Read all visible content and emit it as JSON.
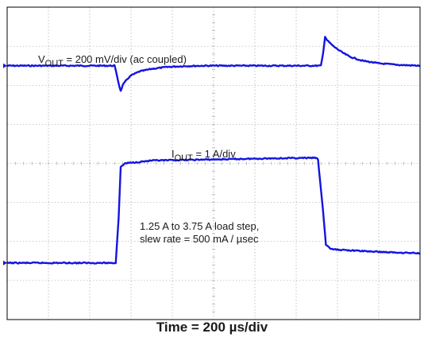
{
  "chart_data": {
    "type": "line",
    "xlabel": "Time = 200 µs/div",
    "divisions": {
      "x": 10,
      "y": 8
    },
    "x_unit": "div",
    "y_unit": "div",
    "series": [
      {
        "label_prefix": "V",
        "label_sub": "OUT",
        "label_suffix": " = 200 mV/div (ac coupled)",
        "color": "#1414e0",
        "baseline_div": 1.5,
        "points": [
          [
            0,
            1.5
          ],
          [
            2.6,
            1.5
          ],
          [
            2.65,
            1.7
          ],
          [
            2.7,
            1.95
          ],
          [
            2.75,
            2.15
          ],
          [
            2.8,
            2.0
          ],
          [
            2.9,
            1.85
          ],
          [
            3.0,
            1.75
          ],
          [
            3.2,
            1.65
          ],
          [
            3.5,
            1.58
          ],
          [
            3.9,
            1.53
          ],
          [
            4.3,
            1.51
          ],
          [
            4.8,
            1.5
          ],
          [
            7.6,
            1.5
          ],
          [
            7.65,
            1.2
          ],
          [
            7.7,
            0.75
          ],
          [
            7.75,
            0.85
          ],
          [
            7.9,
            1.0
          ],
          [
            8.1,
            1.15
          ],
          [
            8.3,
            1.27
          ],
          [
            8.6,
            1.37
          ],
          [
            9.0,
            1.44
          ],
          [
            9.5,
            1.48
          ],
          [
            10,
            1.5
          ]
        ]
      },
      {
        "label_prefix": "I",
        "label_sub": "OUT",
        "label_suffix": " = 1 A/div",
        "color": "#1414e0",
        "points": [
          [
            0,
            6.55
          ],
          [
            2.63,
            6.55
          ],
          [
            2.7,
            5.4
          ],
          [
            2.75,
            4.1
          ],
          [
            2.85,
            4.0
          ],
          [
            3.5,
            3.93
          ],
          [
            5.0,
            3.9
          ],
          [
            6.5,
            3.87
          ],
          [
            7.5,
            3.86
          ],
          [
            7.53,
            3.92
          ],
          [
            7.65,
            5.2
          ],
          [
            7.72,
            6.08
          ],
          [
            7.85,
            6.2
          ],
          [
            8.5,
            6.24
          ],
          [
            9.3,
            6.28
          ],
          [
            10,
            6.3
          ]
        ]
      }
    ],
    "annotations": [
      "1.25 A to 3.75 A load step,",
      "slew rate = 500 mA / µsec"
    ]
  }
}
